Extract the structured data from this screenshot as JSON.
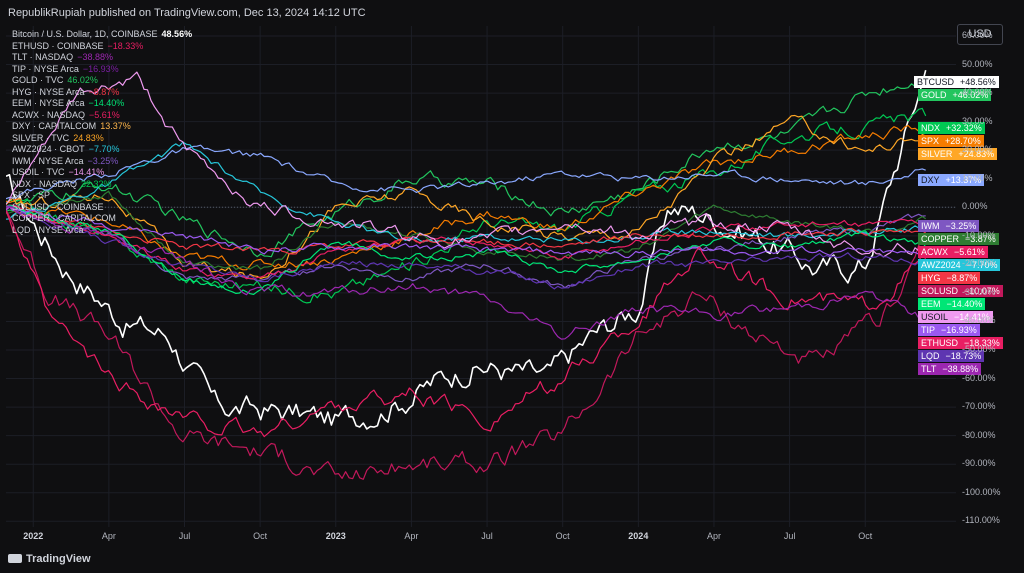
{
  "header": {
    "publisher": "RepublikRupiah published on TradingView.com, Dec 13, 2024 14:12 UTC",
    "currency": "USD"
  },
  "footer": {
    "brand": "TradingView"
  },
  "legend": [
    {
      "label": "Bitcoin / U.S. Dollar, 1D, COINBASE",
      "value": "48.56%",
      "color": "#ffffff"
    },
    {
      "label": "ETHUSD · COINBASE",
      "value": "−18.33%",
      "color": "#e91e63"
    },
    {
      "label": "TLT · NASDAQ",
      "value": "−38.88%",
      "color": "#9c27b0"
    },
    {
      "label": "TIP · NYSE Arca",
      "value": "−16.93%",
      "color": "#7b1fa2"
    },
    {
      "label": "GOLD · TVC",
      "value": "46.02%",
      "color": "#22c55e"
    },
    {
      "label": "HYG · NYSE Arca",
      "value": "−8.87%",
      "color": "#f23645"
    },
    {
      "label": "EEM · NYSE Arca",
      "value": "−14.40%",
      "color": "#00e676"
    },
    {
      "label": "ACWX · NASDAQ",
      "value": "−5.61%",
      "color": "#e91e63"
    },
    {
      "label": "DXY · CAPITALCOM",
      "value": "13.37%",
      "color": "#ffb74d"
    },
    {
      "label": "SILVER · TVC",
      "value": "24.83%",
      "color": "#ffa726"
    },
    {
      "label": "AWZ2024 · CBOT",
      "value": "−7.70%",
      "color": "#26c6da"
    },
    {
      "label": "IWM · NYSE Arca",
      "value": "−3.25%",
      "color": "#7e57c2"
    },
    {
      "label": "USOIL · TVC",
      "value": "−14.41%",
      "color": "#ef9af0"
    },
    {
      "label": "NDX · NASDAQ",
      "value": "32.32%",
      "color": "#00c853"
    },
    {
      "label": "SPX · SP",
      "value": "",
      "color": "#f57c00"
    },
    {
      "label": "SOLUSD · COINBASE",
      "value": "",
      "color": "#c2185b"
    },
    {
      "label": "COPPER · CAPITALCOM",
      "value": "",
      "color": "#2e7d32"
    },
    {
      "label": "LQD · NYSE Arca",
      "value": "",
      "color": "#5e35b1"
    }
  ],
  "chart_data": {
    "type": "line",
    "title": "Bitcoin / U.S. Dollar, 1D, COINBASE",
    "xlabel": "",
    "ylabel": "",
    "ylim": [
      -110,
      62
    ],
    "x_ticks": [
      {
        "label": "2022",
        "t": 0.0,
        "bold": true
      },
      {
        "label": "Apr",
        "t": 0.25
      },
      {
        "label": "Jul",
        "t": 0.5
      },
      {
        "label": "Oct",
        "t": 0.75
      },
      {
        "label": "2023",
        "t": 1.0,
        "bold": true
      },
      {
        "label": "Apr",
        "t": 1.25
      },
      {
        "label": "Jul",
        "t": 1.5
      },
      {
        "label": "Oct",
        "t": 1.75
      },
      {
        "label": "2024",
        "t": 2.0,
        "bold": true
      },
      {
        "label": "Apr",
        "t": 2.25
      },
      {
        "label": "Jul",
        "t": 2.5
      },
      {
        "label": "Oct",
        "t": 2.75
      }
    ],
    "y_ticks": [
      "60.00%",
      "50.00%",
      "40.00%",
      "30.00%",
      "20.00%",
      "10.00%",
      "0.00%",
      "-10.00%",
      "-20.00%",
      "-30.00%",
      "-40.00%",
      "-50.00%",
      "-60.00%",
      "-70.00%",
      "-80.00%",
      "-90.00%",
      "-100.00%",
      "-110.00%"
    ],
    "y_tick_values": [
      60,
      50,
      40,
      30,
      20,
      10,
      0,
      -10,
      -20,
      -30,
      -40,
      -50,
      -60,
      -70,
      -80,
      -90,
      -100,
      -110
    ],
    "series": [
      {
        "name": "BTCUSD",
        "color": "#ffffff",
        "last": "+48.56%",
        "x": [
          -0.09,
          0.1,
          0.3,
          0.45,
          0.6,
          0.85,
          1.0,
          1.2,
          1.45,
          1.7,
          1.85,
          2.0,
          2.1,
          2.2,
          2.4,
          2.6,
          2.75,
          2.95
        ],
        "y": [
          8,
          -20,
          -40,
          -45,
          -70,
          -72,
          -75,
          -68,
          -55,
          -60,
          -45,
          -35,
          0,
          -2,
          -10,
          -22,
          -20,
          48
        ]
      },
      {
        "name": "GOLD",
        "color": "#22c55e",
        "last": "+46.02%",
        "x": [
          -0.09,
          0.25,
          0.5,
          0.75,
          1.0,
          1.25,
          1.5,
          1.75,
          2.0,
          2.25,
          2.5,
          2.75,
          2.95
        ],
        "y": [
          0,
          8,
          -5,
          -15,
          -2,
          10,
          8,
          -2,
          6,
          22,
          25,
          40,
          46
        ]
      },
      {
        "name": "NDX",
        "color": "#00c853",
        "last": "+32.32%",
        "x": [
          -0.09,
          0.25,
          0.5,
          0.75,
          1.0,
          1.25,
          1.5,
          1.75,
          2.0,
          2.25,
          2.5,
          2.75,
          2.95
        ],
        "y": [
          2,
          -10,
          -25,
          -28,
          -30,
          -20,
          -5,
          -8,
          5,
          12,
          25,
          28,
          32
        ]
      },
      {
        "name": "SPX",
        "color": "#f57c00",
        "last": "+28.70%",
        "x": [
          -0.09,
          0.25,
          0.5,
          0.75,
          1.0,
          1.25,
          1.5,
          1.75,
          2.0,
          2.25,
          2.5,
          2.75,
          2.95
        ],
        "y": [
          2,
          -5,
          -18,
          -20,
          -18,
          -10,
          -2,
          -8,
          5,
          15,
          20,
          25,
          28
        ]
      },
      {
        "name": "SILVER",
        "color": "#ffa726",
        "last": "+24.83%",
        "x": [
          -0.09,
          0.25,
          0.5,
          0.75,
          1.0,
          1.25,
          1.5,
          1.75,
          2.0,
          2.25,
          2.5,
          2.75,
          2.95
        ],
        "y": [
          0,
          5,
          -20,
          -25,
          0,
          5,
          -5,
          -10,
          -8,
          15,
          30,
          20,
          25
        ]
      },
      {
        "name": "DXY",
        "color": "#8aa8ff",
        "last": "+13.37%",
        "x": [
          -0.09,
          0.25,
          0.5,
          0.75,
          1.0,
          1.25,
          1.5,
          1.75,
          2.0,
          2.25,
          2.5,
          2.75,
          2.95
        ],
        "y": [
          4,
          12,
          20,
          18,
          8,
          6,
          8,
          12,
          10,
          12,
          10,
          8,
          13
        ]
      },
      {
        "name": "IWM",
        "color": "#7e57c2",
        "last": "−3.25%",
        "x": [
          -0.09,
          0.25,
          0.5,
          0.75,
          1.0,
          1.25,
          1.5,
          1.75,
          2.0,
          2.25,
          2.5,
          2.75,
          2.95
        ],
        "y": [
          0,
          -10,
          -25,
          -25,
          -20,
          -25,
          -20,
          -28,
          -18,
          -15,
          -10,
          -8,
          -3
        ]
      },
      {
        "name": "COPPER",
        "color": "#2e7d32",
        "last": "−3.87%",
        "x": [
          -0.09,
          0.25,
          0.5,
          0.75,
          1.0,
          1.25,
          1.5,
          1.75,
          2.0,
          2.25,
          2.5,
          2.75,
          2.95
        ],
        "y": [
          -2,
          5,
          -20,
          -22,
          -5,
          -10,
          -15,
          -18,
          -15,
          0,
          -5,
          -8,
          -4
        ]
      },
      {
        "name": "ACWX",
        "color": "#e91e63",
        "last": "−5.61%",
        "x": [
          -0.09,
          0.25,
          0.5,
          0.75,
          1.0,
          1.25,
          1.5,
          1.75,
          2.0,
          2.25,
          2.5,
          2.75,
          2.95
        ],
        "y": [
          0,
          -10,
          -22,
          -25,
          -15,
          -12,
          -12,
          -18,
          -12,
          -8,
          -6,
          -6,
          -5
        ]
      },
      {
        "name": "AWZ2024",
        "color": "#26c6da",
        "last": "−7.70%",
        "x": [
          -0.09,
          0.25,
          0.5,
          0.75,
          1.0,
          1.25,
          1.5,
          1.75,
          2.0,
          2.25,
          2.5,
          2.75,
          2.95
        ],
        "y": [
          -5,
          8,
          22,
          5,
          -5,
          -12,
          -10,
          -12,
          -10,
          -8,
          -10,
          -8,
          -8
        ]
      },
      {
        "name": "HYG",
        "color": "#f23645",
        "last": "−8.87%",
        "x": [
          -0.09,
          0.25,
          0.5,
          0.75,
          1.0,
          1.25,
          1.5,
          1.75,
          2.0,
          2.25,
          2.5,
          2.75,
          2.95
        ],
        "y": [
          0,
          -8,
          -14,
          -15,
          -14,
          -12,
          -12,
          -14,
          -10,
          -10,
          -9,
          -9,
          -9
        ]
      },
      {
        "name": "SOLUSD",
        "color": "#c2185b",
        "last": "−10.07%",
        "x": [
          -0.09,
          0.05,
          0.25,
          0.5,
          0.75,
          1.0,
          1.25,
          1.5,
          1.75,
          2.0,
          2.2,
          2.4,
          2.6,
          2.8,
          2.95
        ],
        "y": [
          0,
          -30,
          -45,
          -80,
          -85,
          -95,
          -90,
          -90,
          -80,
          -45,
          -30,
          -45,
          -55,
          -40,
          -10
        ]
      },
      {
        "name": "EEM",
        "color": "#00e676",
        "last": "−14.40%",
        "x": [
          -0.09,
          0.25,
          0.5,
          0.75,
          1.0,
          1.25,
          1.5,
          1.75,
          2.0,
          2.25,
          2.5,
          2.75,
          2.95
        ],
        "y": [
          0,
          -8,
          -25,
          -30,
          -12,
          -18,
          -16,
          -22,
          -18,
          -12,
          -14,
          -10,
          -14
        ]
      },
      {
        "name": "USOIL",
        "color": "#ef9af0",
        "last": "−14.41%",
        "x": [
          -0.09,
          0.15,
          0.35,
          0.5,
          0.75,
          1.0,
          1.25,
          1.5,
          1.75,
          2.0,
          2.25,
          2.5,
          2.75,
          2.95
        ],
        "y": [
          0,
          40,
          45,
          20,
          0,
          -5,
          -10,
          -12,
          -5,
          -10,
          -5,
          -8,
          -15,
          -14
        ]
      },
      {
        "name": "TIP",
        "color": "#9b59f0",
        "last": "−16.93%",
        "x": [
          -0.09,
          0.25,
          0.5,
          0.75,
          1.0,
          1.25,
          1.5,
          1.75,
          2.0,
          2.25,
          2.5,
          2.75,
          2.95
        ],
        "y": [
          0,
          -6,
          -10,
          -15,
          -14,
          -14,
          -15,
          -16,
          -16,
          -15,
          -15,
          -16,
          -17
        ]
      },
      {
        "name": "ETHUSD",
        "color": "#e91e63",
        "last": "−18.33%",
        "x": [
          -0.09,
          0.05,
          0.25,
          0.5,
          0.75,
          1.0,
          1.25,
          1.5,
          1.75,
          2.0,
          2.2,
          2.45,
          2.75,
          2.95
        ],
        "y": [
          0,
          -40,
          -60,
          -75,
          -80,
          -70,
          -65,
          -75,
          -60,
          -40,
          -15,
          -30,
          -35,
          -18
        ]
      },
      {
        "name": "LQD",
        "color": "#5e35b1",
        "last": "−18.73%",
        "x": [
          -0.09,
          0.25,
          0.5,
          0.75,
          1.0,
          1.25,
          1.5,
          1.75,
          2.0,
          2.25,
          2.5,
          2.75,
          2.95
        ],
        "y": [
          0,
          -12,
          -20,
          -25,
          -20,
          -20,
          -22,
          -28,
          -20,
          -20,
          -18,
          -17,
          -19
        ]
      },
      {
        "name": "TLT",
        "color": "#9c27b0",
        "last": "−38.88%",
        "x": [
          -0.09,
          0.25,
          0.5,
          0.75,
          1.0,
          1.25,
          1.5,
          1.75,
          2.0,
          2.25,
          2.5,
          2.75,
          2.95
        ],
        "y": [
          0,
          -10,
          -20,
          -30,
          -30,
          -28,
          -32,
          -45,
          -35,
          -38,
          -35,
          -30,
          -39
        ]
      }
    ]
  }
}
